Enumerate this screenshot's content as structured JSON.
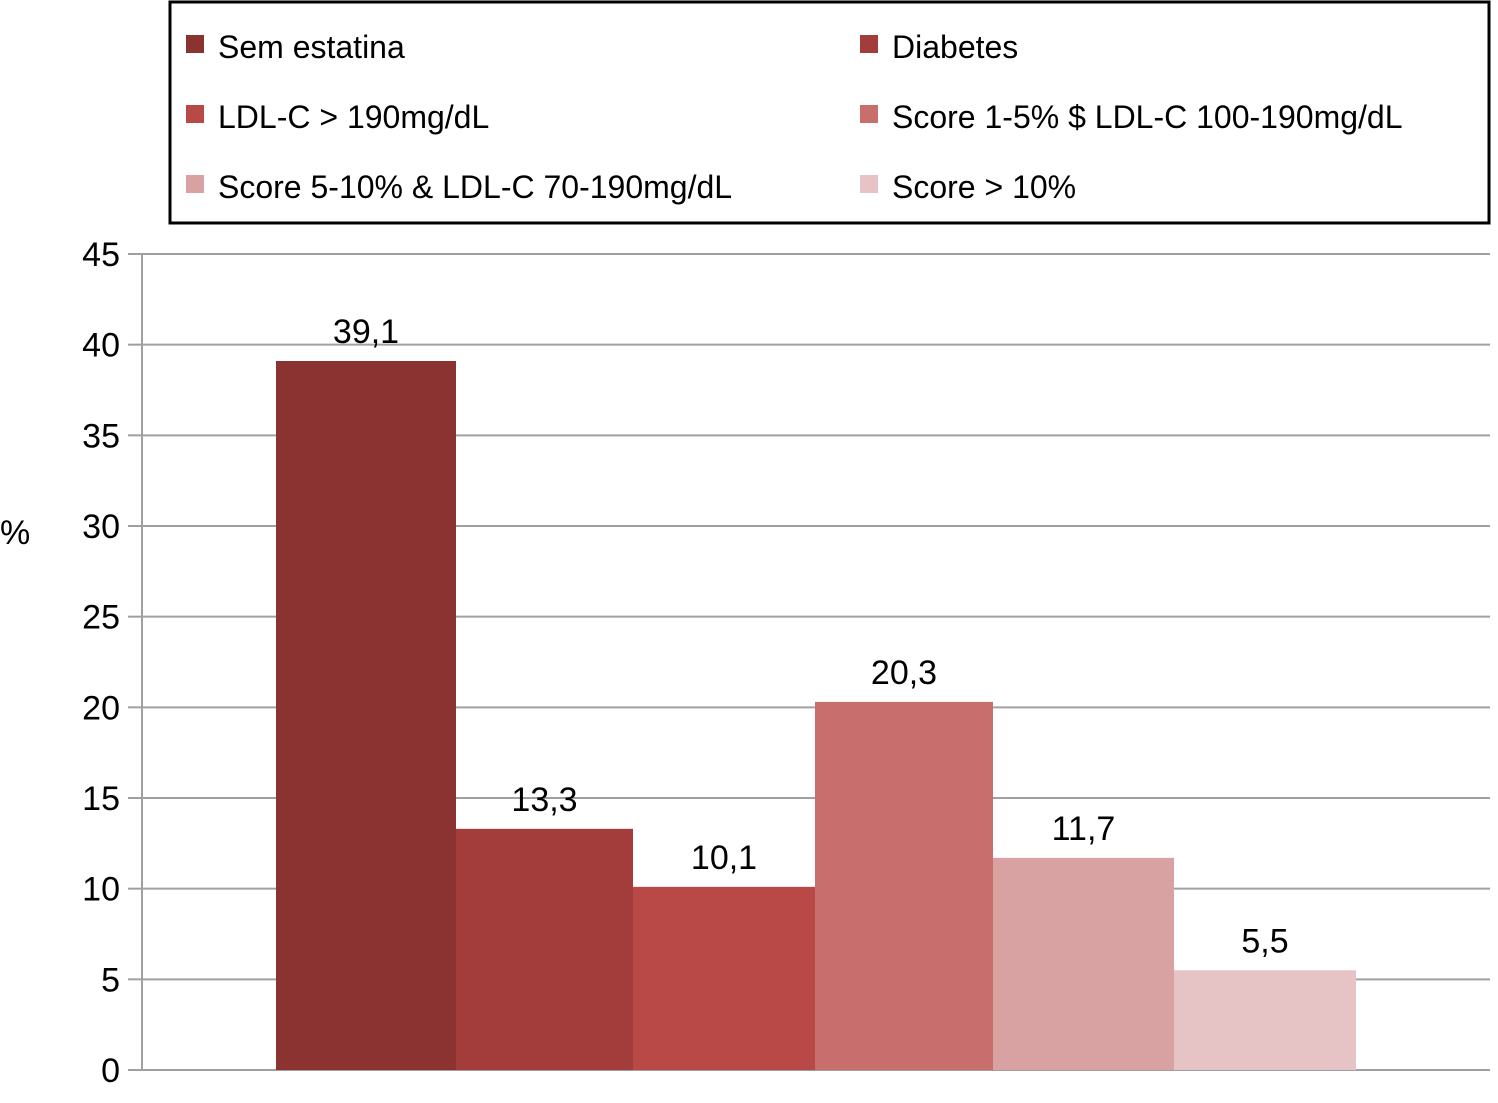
{
  "chart_data": {
    "type": "bar",
    "title": "",
    "xlabel": "",
    "ylabel": "%",
    "ylim": [
      0,
      45
    ],
    "yticks": [
      0,
      5,
      10,
      15,
      20,
      25,
      30,
      35,
      40,
      45
    ],
    "grid": true,
    "legend_position": "top",
    "series": [
      {
        "name": "Sem estatina",
        "value": 39.1,
        "label": "39,1",
        "color": "#8b3331"
      },
      {
        "name": "Diabetes",
        "value": 13.3,
        "label": "13,3",
        "color": "#a33d3b"
      },
      {
        "name": "LDL-C > 190mg/dL",
        "value": 10.1,
        "label": "10,1",
        "color": "#b84946"
      },
      {
        "name": "Score 1-5% $ LDL-C 100-190mg/dL",
        "value": 20.3,
        "label": "20,3",
        "color": "#c86f6d"
      },
      {
        "name": "Score 5-10% & LDL-C 70-190mg/dL",
        "value": 11.7,
        "label": "11,7",
        "color": "#d9a2a2"
      },
      {
        "name": "Score > 10%",
        "value": 5.5,
        "label": "5,5",
        "color": "#e6c4c5"
      }
    ]
  }
}
